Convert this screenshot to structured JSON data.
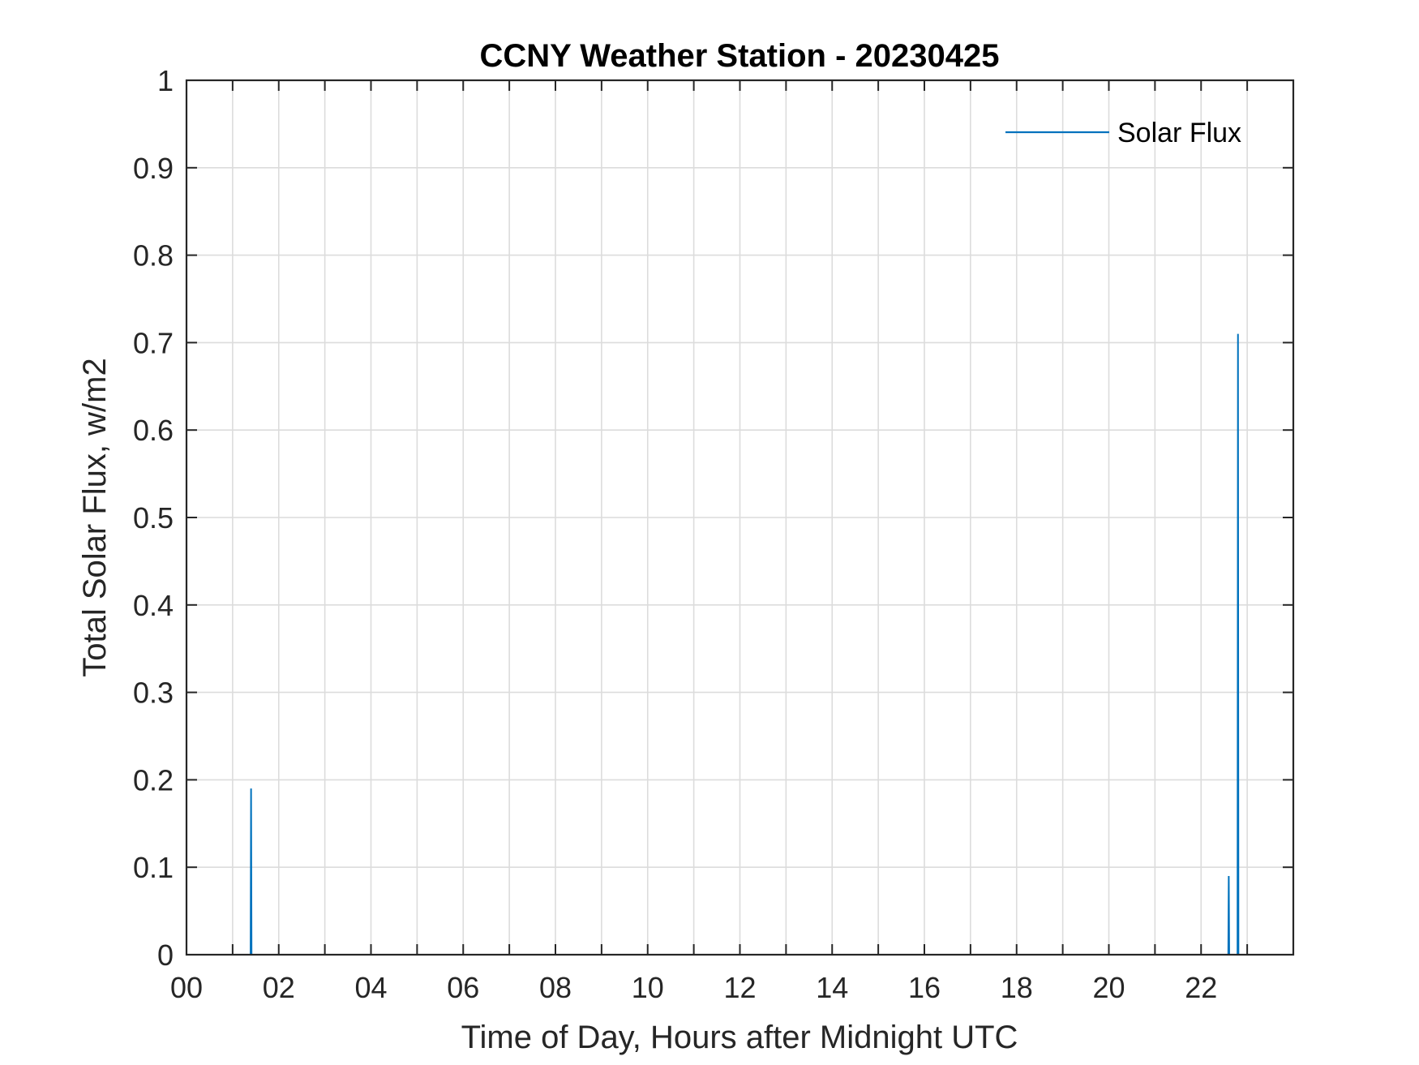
{
  "chart_data": {
    "type": "line",
    "title": "CCNY Weather Station - 20230425",
    "xlabel": "Time of Day, Hours after Midnight UTC",
    "ylabel": "Total Solar Flux, w/m2",
    "xlim": [
      0,
      24
    ],
    "ylim": [
      0,
      1
    ],
    "x_ticks": [
      0,
      2,
      4,
      6,
      8,
      10,
      12,
      14,
      16,
      18,
      20,
      22
    ],
    "x_tick_labels": [
      "00",
      "02",
      "04",
      "06",
      "08",
      "10",
      "12",
      "14",
      "16",
      "18",
      "20",
      "22"
    ],
    "y_ticks": [
      0,
      0.1,
      0.2,
      0.3,
      0.4,
      0.5,
      0.6,
      0.7,
      0.8,
      0.9,
      1
    ],
    "y_tick_labels": [
      "0",
      "0.1",
      "0.2",
      "0.3",
      "0.4",
      "0.5",
      "0.6",
      "0.7",
      "0.8",
      "0.9",
      "1"
    ],
    "grid": true,
    "legend_position": "top-right",
    "series": [
      {
        "name": "Solar Flux",
        "color": "#0072BD",
        "points": [
          [
            0,
            0
          ],
          [
            1.39,
            0
          ],
          [
            1.4,
            0.19
          ],
          [
            1.41,
            0
          ],
          [
            22.59,
            0
          ],
          [
            22.6,
            0.09
          ],
          [
            22.61,
            0
          ],
          [
            22.79,
            0
          ],
          [
            22.8,
            0.71
          ],
          [
            22.81,
            0
          ],
          [
            24,
            0
          ]
        ]
      }
    ]
  }
}
